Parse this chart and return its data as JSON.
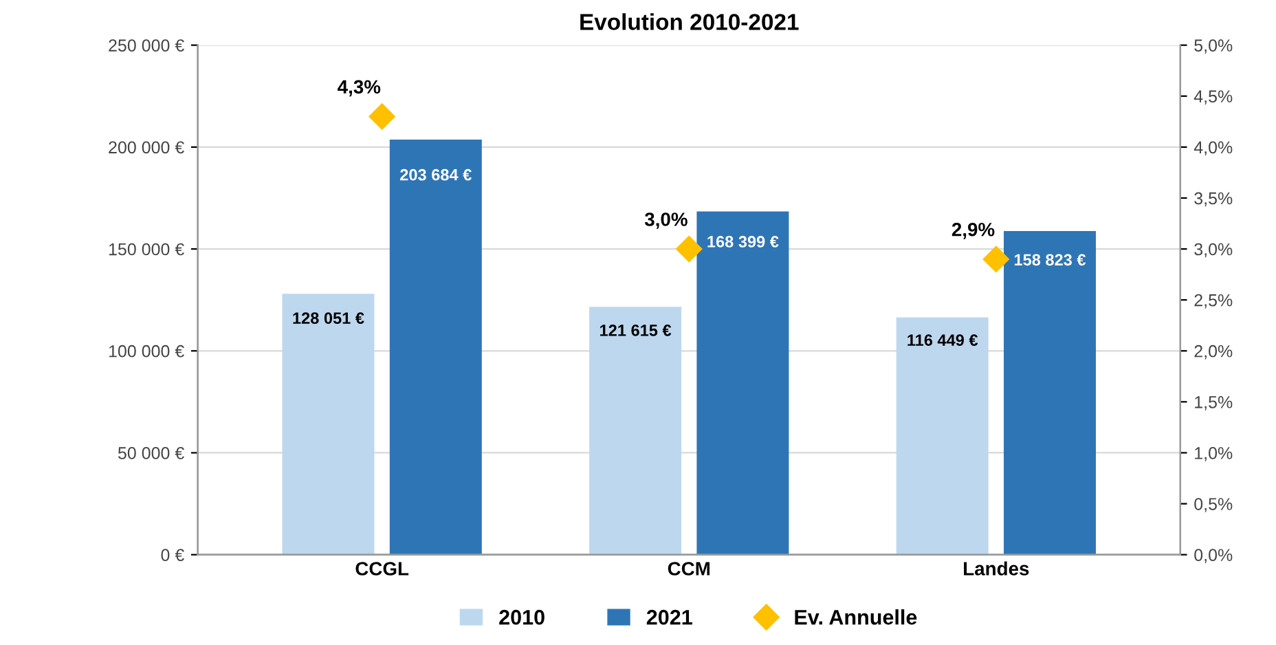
{
  "chart_data": {
    "type": "bar",
    "title": "Evolution 2010-2021",
    "categories": [
      "CCGL",
      "CCM",
      "Landes"
    ],
    "series": [
      {
        "name": "2010",
        "color": "#bdd7ee",
        "values": [
          128051,
          121615,
          116449
        ],
        "value_labels": [
          "128 051 €",
          "121 615 €",
          "116 449 €"
        ]
      },
      {
        "name": "2021",
        "color": "#2e75b6",
        "values": [
          203684,
          168399,
          158823
        ],
        "value_labels": [
          "203 684 €",
          "168 399 €",
          "158 823 €"
        ]
      },
      {
        "name": "Ev. Annuelle",
        "type": "scatter",
        "axis": "y2",
        "marker": "diamond",
        "color": "#ffc000",
        "values": [
          4.3,
          3.0,
          2.9
        ],
        "value_labels": [
          "4,3%",
          "3,0%",
          "2,9%"
        ]
      }
    ],
    "ylim": [
      0,
      250000
    ],
    "yticks": [
      {
        "value": 0,
        "label": "0 €"
      },
      {
        "value": 50000,
        "label": "50 000 €"
      },
      {
        "value": 100000,
        "label": "100 000 €"
      },
      {
        "value": 150000,
        "label": "150 000 €"
      },
      {
        "value": 200000,
        "label": "200 000 €"
      },
      {
        "value": 250000,
        "label": "250 000 €"
      }
    ],
    "y2lim": [
      0,
      5
    ],
    "y2ticks": [
      {
        "value": 0,
        "label": "0,0%"
      },
      {
        "value": 0.5,
        "label": "0,5%"
      },
      {
        "value": 1,
        "label": "1,0%"
      },
      {
        "value": 1.5,
        "label": "1,5%"
      },
      {
        "value": 2,
        "label": "2,0%"
      },
      {
        "value": 2.5,
        "label": "2,5%"
      },
      {
        "value": 3,
        "label": "3,0%"
      },
      {
        "value": 3.5,
        "label": "3,5%"
      },
      {
        "value": 4,
        "label": "4,0%"
      },
      {
        "value": 4.5,
        "label": "4,5%"
      },
      {
        "value": 5,
        "label": "5,0%"
      }
    ],
    "grid": "y",
    "legend": "bottom"
  }
}
